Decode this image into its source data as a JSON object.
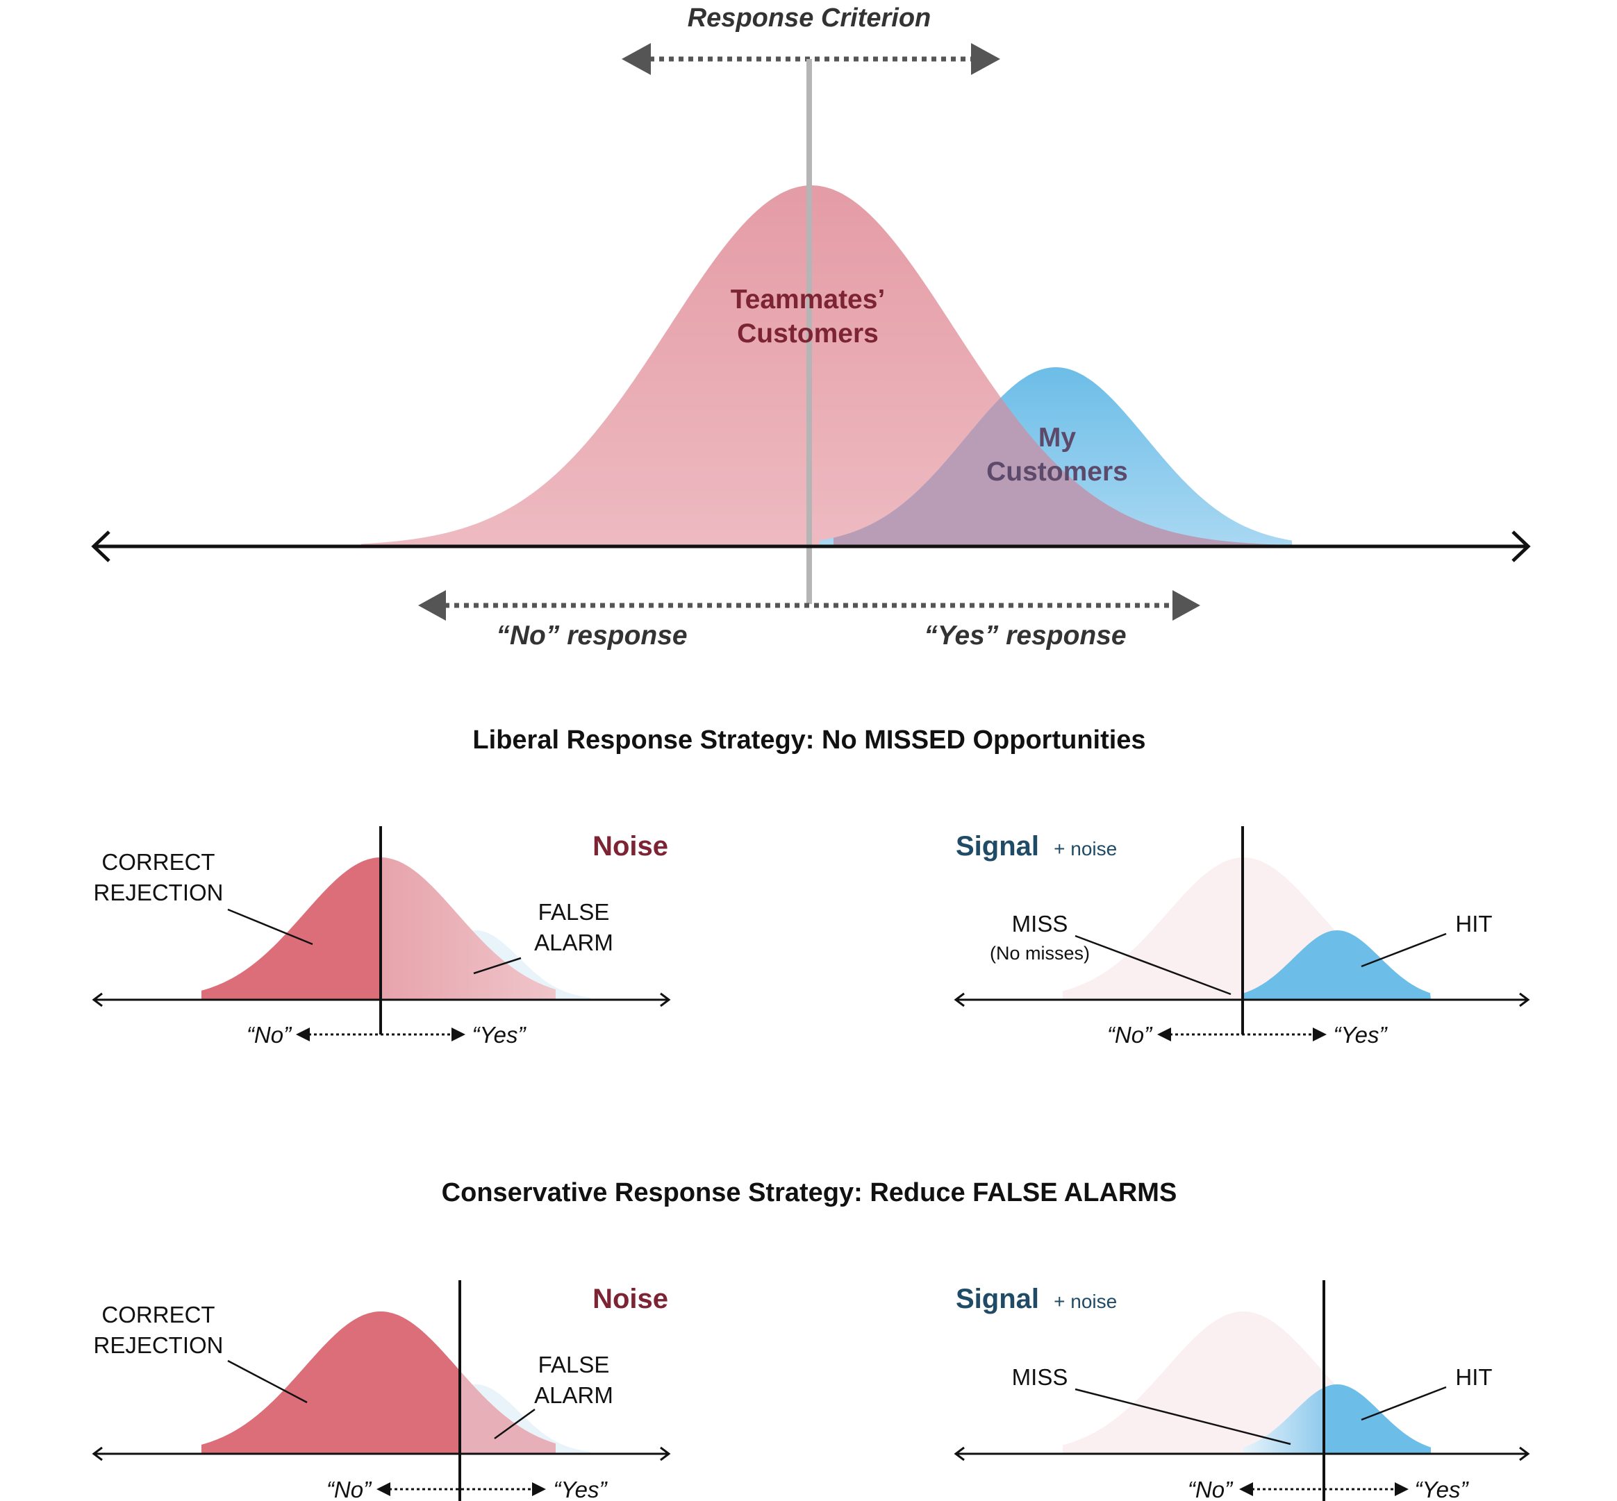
{
  "top": {
    "criterion_title": "Response Criterion",
    "teammates_line1": "Teammates’",
    "teammates_line2": "Customers",
    "my_line1": "My",
    "my_line2": "Customers",
    "no_response": "“No” response",
    "yes_response": "“Yes” response"
  },
  "liberal": {
    "title": "Liberal Response Strategy: No MISSED Opportunities",
    "noise_title": "Noise",
    "correct_rejection_line1": "CORRECT",
    "correct_rejection_line2": "REJECTION",
    "false_alarm_line1": "FALSE",
    "false_alarm_line2": "ALARM",
    "no": "“No”",
    "yes": "“Yes”",
    "signal_title": "Signal",
    "signal_suffix": "+ noise",
    "miss": "MISS",
    "miss_note": "(No misses)",
    "hit": "HIT"
  },
  "conservative": {
    "title": "Conservative Response Strategy: Reduce FALSE ALARMS",
    "noise_title": "Noise",
    "correct_rejection_line1": "CORRECT",
    "correct_rejection_line2": "REJECTION",
    "false_alarm_line1": "FALSE",
    "false_alarm_line2": "ALARM",
    "no": "“No”",
    "yes": "“Yes”",
    "signal_title": "Signal",
    "signal_suffix": "+ noise",
    "miss": "MISS",
    "hit": "HIT"
  },
  "colors": {
    "noise_dark": "#dc6e7a",
    "noise_light": "#e8a7b0",
    "signal_blue": "#6cbde8",
    "overlap": "#b79db7",
    "noise_title": "#7c2434",
    "signal_title": "#1f4b66",
    "gray_arrow": "#555555",
    "axis": "#111111"
  }
}
